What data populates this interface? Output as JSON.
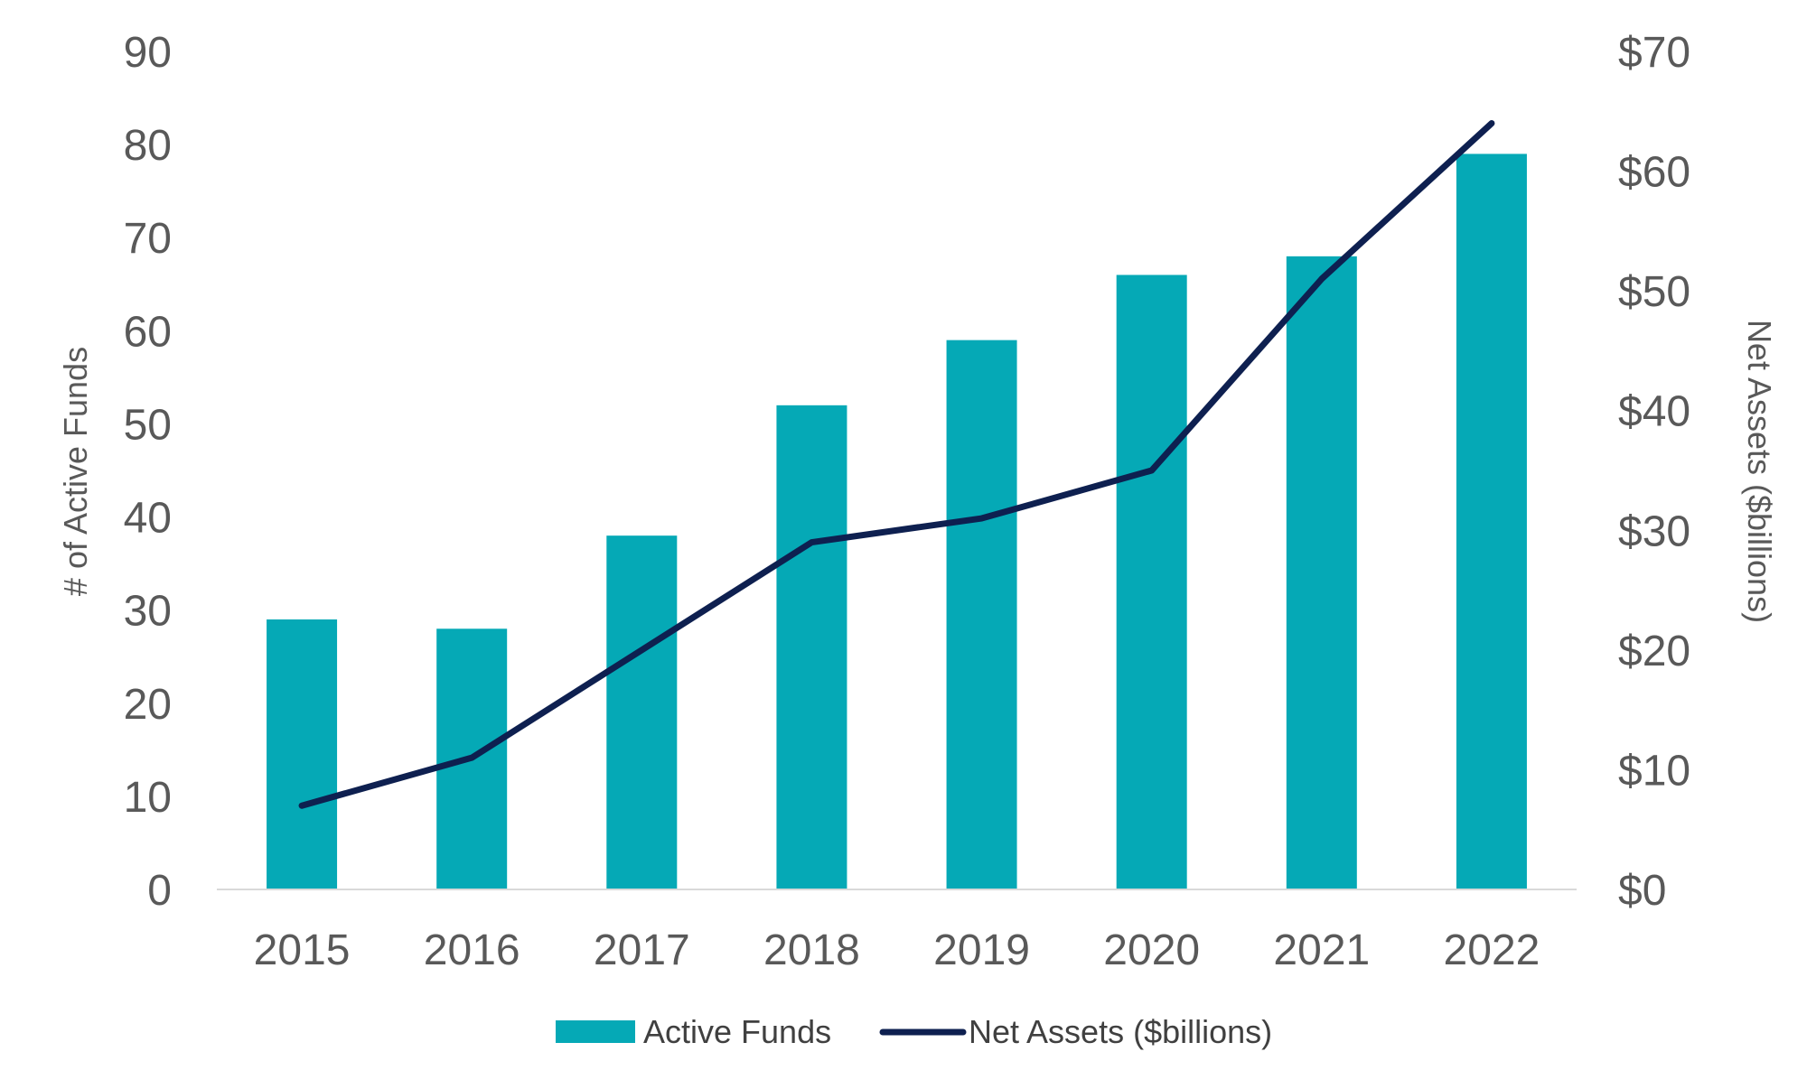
{
  "chart_data": {
    "type": "bar+line",
    "categories": [
      "2015",
      "2016",
      "2017",
      "2018",
      "2019",
      "2020",
      "2021",
      "2022"
    ],
    "series": [
      {
        "name": "Active Funds",
        "type": "bar",
        "axis": "left",
        "values": [
          29,
          28,
          38,
          52,
          59,
          66,
          68,
          79
        ]
      },
      {
        "name": "Net Assets ($billions)",
        "type": "line",
        "axis": "right",
        "values": [
          7,
          11,
          20,
          29,
          31,
          35,
          51,
          64
        ]
      }
    ],
    "ylabel_left": "# of Active Funds",
    "ylabel_right": "Net Assets ($billions)",
    "ylim_left": [
      0,
      90
    ],
    "ylim_right": [
      0,
      70
    ],
    "left_ticks": [
      "0",
      "10",
      "20",
      "30",
      "40",
      "50",
      "60",
      "70",
      "80",
      "90"
    ],
    "right_ticks": [
      "$0",
      "$10",
      "$20",
      "$30",
      "$40",
      "$50",
      "$60",
      "$70"
    ],
    "grid": false,
    "legend_position": "bottom",
    "colors": {
      "bar": "#05A9B6",
      "line": "#0E2050",
      "axis": "#D9D9D9",
      "text": "#595959"
    }
  }
}
